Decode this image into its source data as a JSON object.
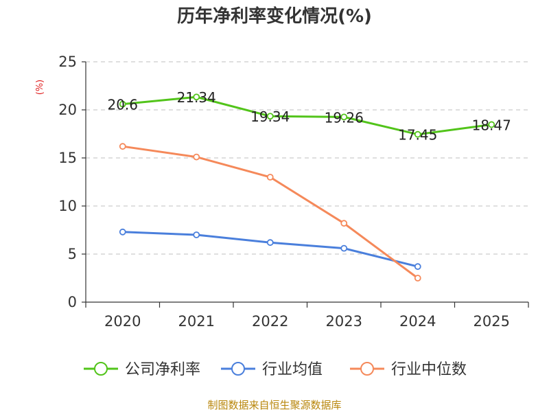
{
  "chart_data": {
    "type": "line",
    "title": "历年净利率变化情况(%)",
    "ylabel": "(%)",
    "xlabel": "",
    "categories": [
      "2020",
      "2021",
      "2022",
      "2023",
      "2024",
      "2025"
    ],
    "ylim": [
      0,
      25
    ],
    "yticks": [
      0,
      5,
      10,
      15,
      20,
      25
    ],
    "grid": true,
    "legend_position": "bottom",
    "series": [
      {
        "name": "公司净利率",
        "color": "#52c41a",
        "values": [
          20.6,
          21.34,
          19.34,
          19.26,
          17.45,
          18.47
        ],
        "labels": [
          "20.6",
          "21.34",
          "19.34",
          "19.26",
          "17.45",
          "18.47"
        ]
      },
      {
        "name": "行业均值",
        "color": "#4a7fdc",
        "values": [
          7.3,
          7.0,
          6.2,
          5.6,
          3.7,
          null
        ]
      },
      {
        "name": "行业中位数",
        "color": "#f5895a",
        "values": [
          16.2,
          15.1,
          13.0,
          8.2,
          2.5,
          null
        ]
      }
    ]
  },
  "source_text": "制图数据来自恒生聚源数据库"
}
